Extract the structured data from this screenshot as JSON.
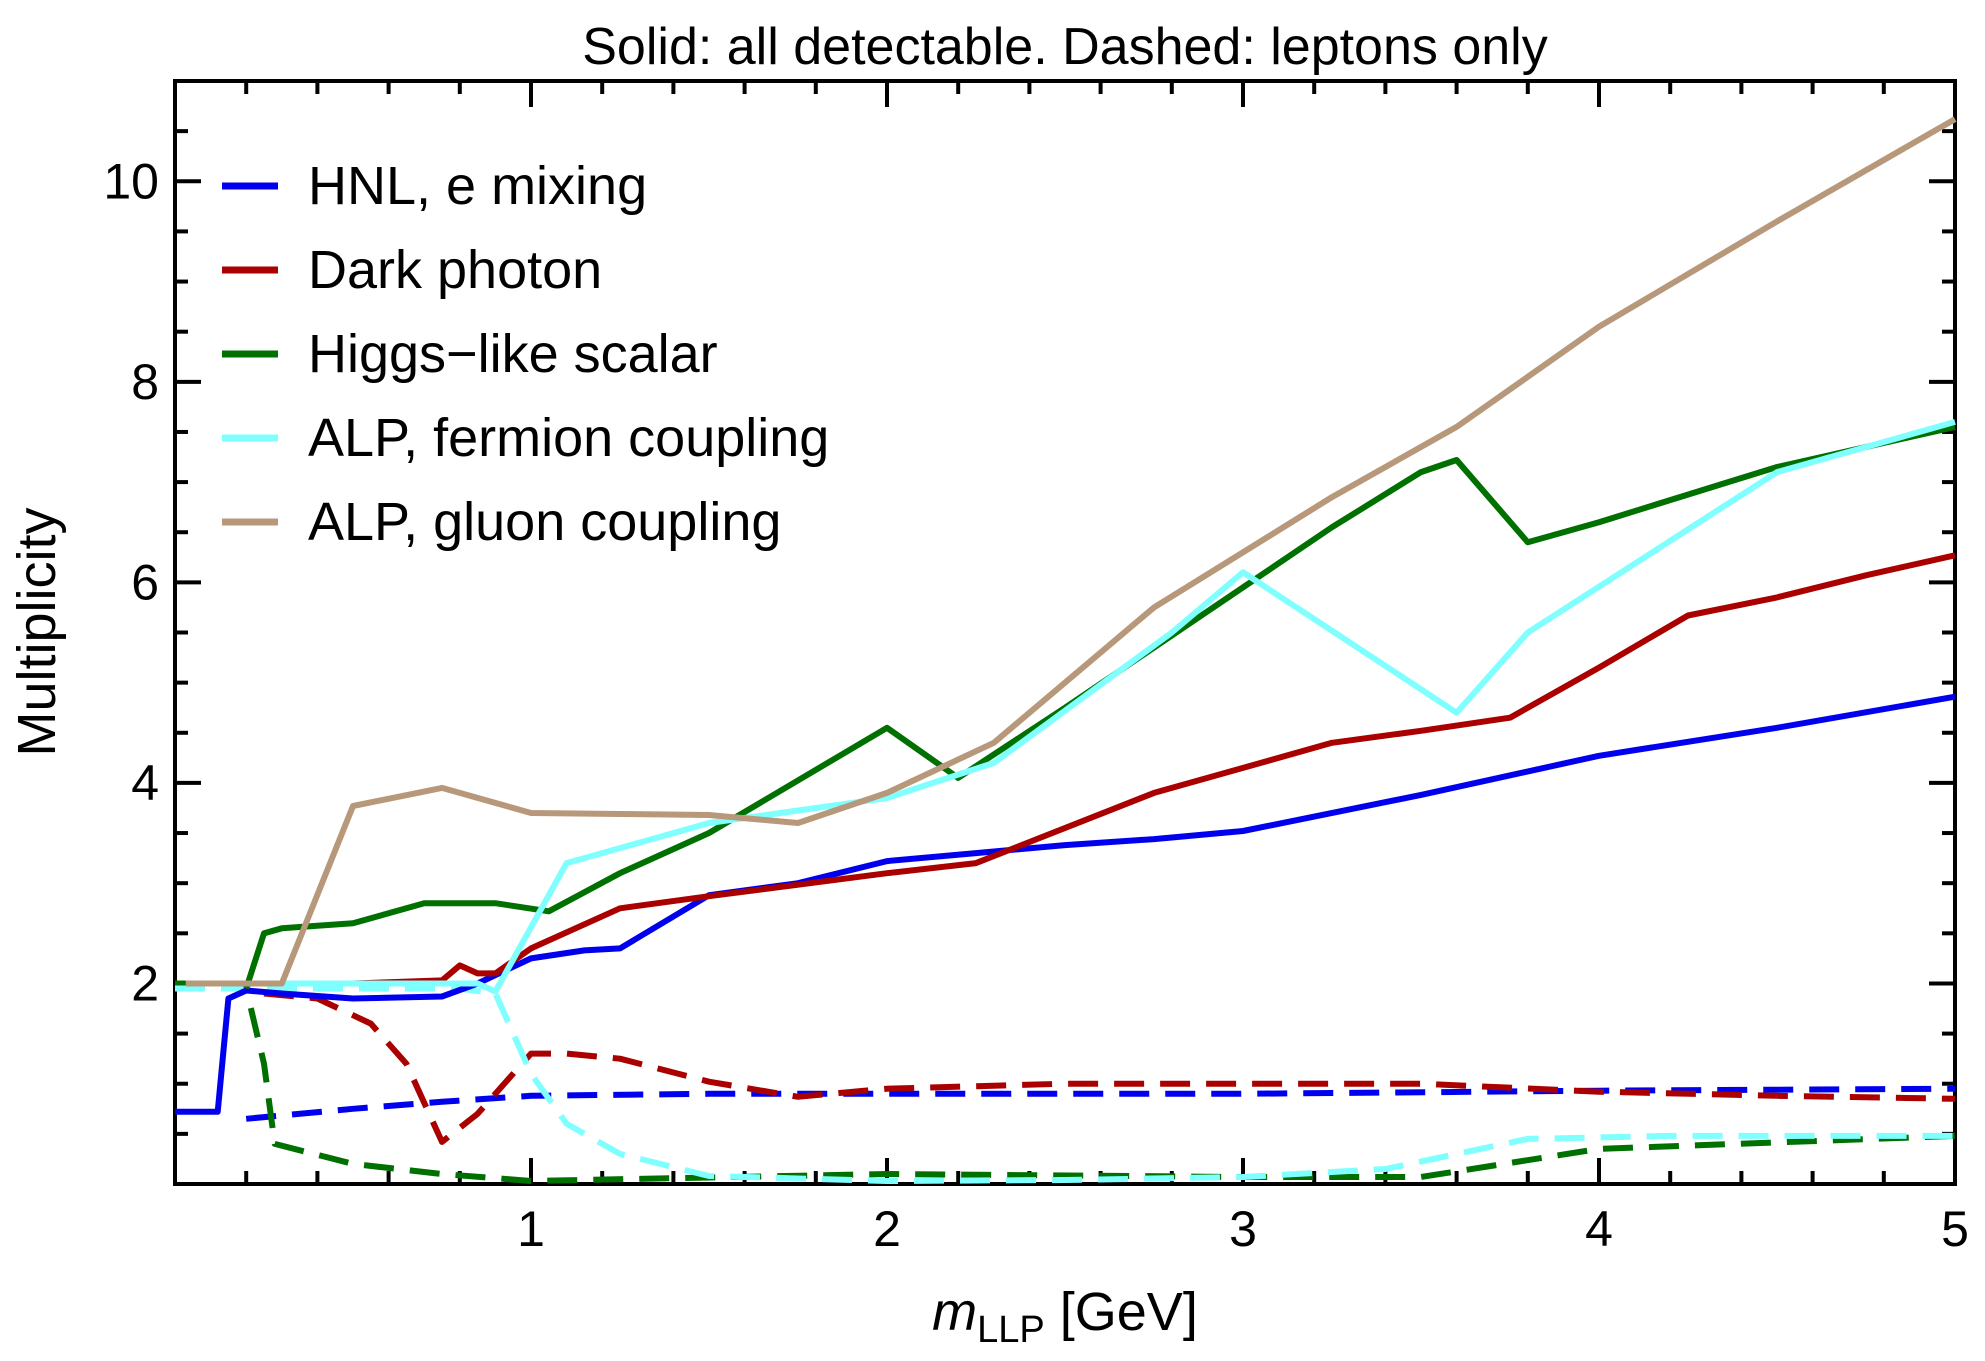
{
  "chart_data": {
    "type": "line",
    "title": "Solid: all detectable. Dashed: leptons only",
    "xlabel": {
      "main": "m",
      "sub": "LLP",
      "unit": " [GeV]"
    },
    "ylabel": "Multiplicity",
    "xlim": [
      0,
      5
    ],
    "ylim": [
      0,
      11
    ],
    "xticks": [
      1,
      2,
      3,
      4,
      5
    ],
    "yticks": [
      2,
      4,
      6,
      8,
      10
    ],
    "xminor_step": 0.2,
    "yminor_step": 0.5,
    "grid": false,
    "legend_position": "top-left",
    "legend": [
      {
        "label": "HNL, e mixing",
        "color": "#0000ee"
      },
      {
        "label": "Dark photon",
        "color": "#aa0000"
      },
      {
        "label": "Higgs−like scalar",
        "color": "#007000"
      },
      {
        "label": "ALP, fermion coupling",
        "color": "#80ffff"
      },
      {
        "label": "ALP, gluon coupling",
        "color": "#b8987a"
      }
    ],
    "series": [
      {
        "name": "HNL, e mixing",
        "style": "solid",
        "color": "#0000ee",
        "x": [
          0,
          0.12,
          0.15,
          0.2,
          0.3,
          0.5,
          0.75,
          0.85,
          1.0,
          1.15,
          1.25,
          1.5,
          1.75,
          2.0,
          2.25,
          2.5,
          2.75,
          3.0,
          3.5,
          4.0,
          4.5,
          5.0
        ],
        "y": [
          0.72,
          0.72,
          1.85,
          1.93,
          1.9,
          1.85,
          1.87,
          2.0,
          2.25,
          2.33,
          2.35,
          2.88,
          3.0,
          3.22,
          3.3,
          3.38,
          3.44,
          3.52,
          3.88,
          4.27,
          4.55,
          4.86
        ]
      },
      {
        "name": "Dark photon",
        "style": "solid",
        "color": "#aa0000",
        "x": [
          0.5,
          0.75,
          0.8,
          0.85,
          0.9,
          1.0,
          1.25,
          1.5,
          2.0,
          2.25,
          2.75,
          3.0,
          3.25,
          3.5,
          3.75,
          4.0,
          4.25,
          4.5,
          4.75,
          5.0
        ],
        "y": [
          2.0,
          2.03,
          2.18,
          2.1,
          2.1,
          2.35,
          2.75,
          2.87,
          3.1,
          3.2,
          3.9,
          4.15,
          4.4,
          4.52,
          4.65,
          5.15,
          5.67,
          5.85,
          6.07,
          6.27
        ]
      },
      {
        "name": "Higgs−like scalar",
        "style": "solid",
        "color": "#007000",
        "x": [
          0.2,
          0.25,
          0.3,
          0.5,
          0.7,
          0.9,
          1.05,
          1.25,
          1.5,
          2.0,
          2.2,
          2.5,
          3.0,
          3.25,
          3.5,
          3.6,
          3.8,
          4.0,
          4.5,
          5.0
        ],
        "y": [
          1.95,
          2.5,
          2.55,
          2.6,
          2.8,
          2.8,
          2.72,
          3.1,
          3.5,
          4.55,
          4.05,
          4.75,
          5.95,
          6.55,
          7.1,
          7.22,
          6.4,
          6.6,
          7.15,
          7.55
        ]
      },
      {
        "name": "ALP, fermion coupling",
        "style": "solid",
        "color": "#80ffff",
        "x": [
          0.3,
          0.5,
          0.75,
          0.85,
          0.9,
          1.1,
          1.5,
          2.0,
          2.3,
          2.8,
          3.0,
          3.6,
          3.8,
          4.5,
          5.0
        ],
        "y": [
          2.0,
          2.0,
          2.0,
          2.0,
          1.92,
          3.2,
          3.6,
          3.85,
          4.2,
          5.5,
          6.1,
          4.7,
          5.5,
          7.1,
          7.6
        ]
      },
      {
        "name": "ALP, gluon coupling",
        "style": "solid",
        "color": "#b8987a",
        "x": [
          0.03,
          0.25,
          0.3,
          0.5,
          0.75,
          1.0,
          1.25,
          1.5,
          1.75,
          2.0,
          2.3,
          2.75,
          3.0,
          3.25,
          3.6,
          4.0,
          4.5,
          5.0
        ],
        "y": [
          2.0,
          2.0,
          2.0,
          3.77,
          3.95,
          3.7,
          3.69,
          3.68,
          3.6,
          3.9,
          4.4,
          5.75,
          6.3,
          6.85,
          7.55,
          8.55,
          9.6,
          10.62
        ]
      },
      {
        "name": "HNL, e mixing (leptons)",
        "style": "dashed",
        "color": "#0000ee",
        "x": [
          0.2,
          0.5,
          0.75,
          1.0,
          1.5,
          2.0,
          3.0,
          4.0,
          5.0
        ],
        "y": [
          0.65,
          0.75,
          0.82,
          0.88,
          0.9,
          0.9,
          0.9,
          0.93,
          0.95
        ]
      },
      {
        "name": "Dark photon (leptons)",
        "style": "dashed",
        "color": "#aa0000",
        "x": [
          0.25,
          0.4,
          0.55,
          0.65,
          0.75,
          0.85,
          1.0,
          1.1,
          1.25,
          1.5,
          1.75,
          2.0,
          2.5,
          3.0,
          3.5,
          4.0,
          4.5,
          5.0
        ],
        "y": [
          1.9,
          1.85,
          1.6,
          1.2,
          0.42,
          0.7,
          1.3,
          1.3,
          1.25,
          1.02,
          0.87,
          0.95,
          1.0,
          1.0,
          1.0,
          0.92,
          0.88,
          0.85
        ]
      },
      {
        "name": "Higgs−like scalar (leptons)",
        "style": "dashed",
        "color": "#007000",
        "x": [
          0.0,
          0.15,
          0.2,
          0.25,
          0.28,
          0.5,
          0.75,
          1.0,
          2.0,
          3.0,
          3.5,
          4.0,
          5.0
        ],
        "y": [
          2.0,
          2.0,
          1.95,
          1.2,
          0.4,
          0.2,
          0.1,
          0.03,
          0.1,
          0.07,
          0.07,
          0.35,
          0.48
        ]
      },
      {
        "name": "ALP, fermion coupling (leptons)",
        "style": "dashed",
        "color": "#80ffff",
        "x": [
          0.0,
          0.2,
          0.8,
          0.9,
          1.0,
          1.1,
          1.25,
          1.5,
          2.0,
          2.5,
          3.0,
          3.4,
          3.8,
          4.2,
          4.6,
          5.0
        ],
        "y": [
          1.95,
          1.95,
          1.95,
          1.9,
          1.1,
          0.6,
          0.3,
          0.08,
          0.03,
          0.04,
          0.07,
          0.15,
          0.45,
          0.48,
          0.48,
          0.48
        ]
      }
    ]
  }
}
